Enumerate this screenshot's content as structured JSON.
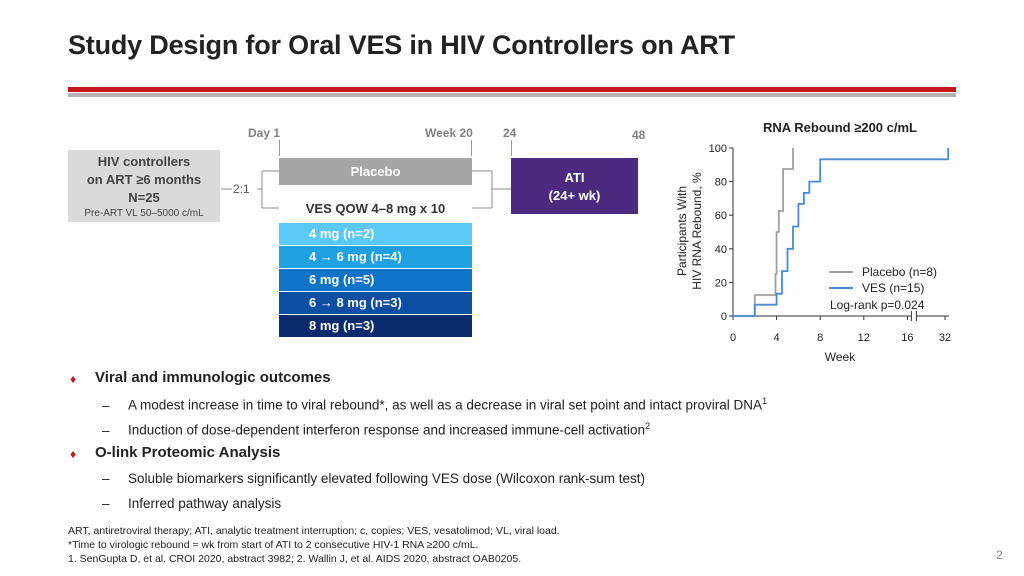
{
  "slide": {
    "title": "Study Design for Oral VES in HIV Controllers on ART",
    "page_number": "2"
  },
  "design": {
    "timeline": {
      "day1": "Day 1",
      "week20": "Week 20",
      "week24": "24",
      "week48": "48"
    },
    "cohort": {
      "line1": "HIV controllers",
      "line2": "on ART ≥6 months",
      "line3": "N=25",
      "line4": "Pre-ART VL 50–5000 c/mL"
    },
    "ratio": "2:1",
    "placebo_label": "Placebo",
    "ati_line1": "ATI",
    "ati_line2": "(24+ wk)",
    "ves_label": "VES QOW 4–8 mg x 10",
    "doses": [
      {
        "label": "4 mg (n=2)",
        "color": "#5bc8f5"
      },
      {
        "label": "4 → 6 mg (n=4)",
        "color": "#1fa0e0"
      },
      {
        "label": "6 mg (n=5)",
        "color": "#0f74c7"
      },
      {
        "label": "6 → 8 mg (n=3)",
        "color": "#0b4ea2"
      },
      {
        "label": "8 mg (n=3)",
        "color": "#0a2b6e"
      }
    ]
  },
  "chart_data": {
    "type": "line",
    "title": "RNA Rebound ≥200 c/mL",
    "ylabel_line1": "Participants With",
    "ylabel_line2": "HIV RNA Rebound, %",
    "xlabel": "Week",
    "x_ticks": [
      "0",
      "4",
      "8",
      "12",
      "16",
      "32"
    ],
    "y_ticks": [
      "0",
      "20",
      "40",
      "60",
      "80",
      "100"
    ],
    "ylim": [
      0,
      100
    ],
    "x_axis_break": "between 16 and 32",
    "series": [
      {
        "name": "Placebo (n=8)",
        "color": "#a0a0a0",
        "style": "step",
        "points": [
          [
            0,
            0
          ],
          [
            2,
            0
          ],
          [
            2,
            12.5
          ],
          [
            3.9,
            12.5
          ],
          [
            3.9,
            25
          ],
          [
            4,
            25
          ],
          [
            4,
            50
          ],
          [
            4.2,
            50
          ],
          [
            4.2,
            62.5
          ],
          [
            4.6,
            62.5
          ],
          [
            4.6,
            87.5
          ],
          [
            5.5,
            87.5
          ],
          [
            5.5,
            100
          ]
        ]
      },
      {
        "name": "VES (n=15)",
        "color": "#4a8ad4",
        "style": "step",
        "points": [
          [
            0,
            0
          ],
          [
            2,
            0
          ],
          [
            2,
            6.7
          ],
          [
            4,
            6.7
          ],
          [
            4,
            13.3
          ],
          [
            4.5,
            13.3
          ],
          [
            4.5,
            26.7
          ],
          [
            5,
            26.7
          ],
          [
            5,
            40
          ],
          [
            5.5,
            40
          ],
          [
            5.5,
            53.3
          ],
          [
            6,
            53.3
          ],
          [
            6,
            66.7
          ],
          [
            6.5,
            66.7
          ],
          [
            6.5,
            73.3
          ],
          [
            7,
            73.3
          ],
          [
            7,
            80
          ],
          [
            8,
            80
          ],
          [
            8,
            93.3
          ],
          [
            34,
            93.3
          ],
          [
            34,
            100
          ]
        ]
      }
    ],
    "annotation": "Log-rank p=0.024"
  },
  "bullets": [
    {
      "heading": "Viral and immunologic outcomes",
      "subs": [
        {
          "text": "A modest increase in time to viral rebound*, as well as a decrease in viral set point and intact proviral DNA",
          "sup": "1"
        },
        {
          "text": "Induction of dose-dependent interferon response and increased immune-cell activation",
          "sup": "2"
        }
      ]
    },
    {
      "heading": "O-link Proteomic Analysis",
      "subs": [
        {
          "text": "Soluble biomarkers significantly elevated following VES dose (Wilcoxon rank-sum test)",
          "sup": ""
        },
        {
          "text": "Inferred pathway analysis",
          "sup": ""
        }
      ]
    }
  ],
  "footnotes": [
    "ART, antiretroviral therapy; ATI, analytic treatment interruption; c, copies; VES, vesatolimod; VL, viral load.",
    "*Time to virologic rebound = wk from start of ATI to 2 consecutive HIV-1 RNA ≥200 c/mL.",
    "1. SenGupta D, et al. CROI 2020, abstract 3982; 2. Wallin J, et al. AIDS 2020, abstract OAB0205."
  ],
  "theme": {
    "accent": "#c4161c",
    "rule_gray": "#b3b3b3",
    "ati_purple": "#4b2a80"
  }
}
